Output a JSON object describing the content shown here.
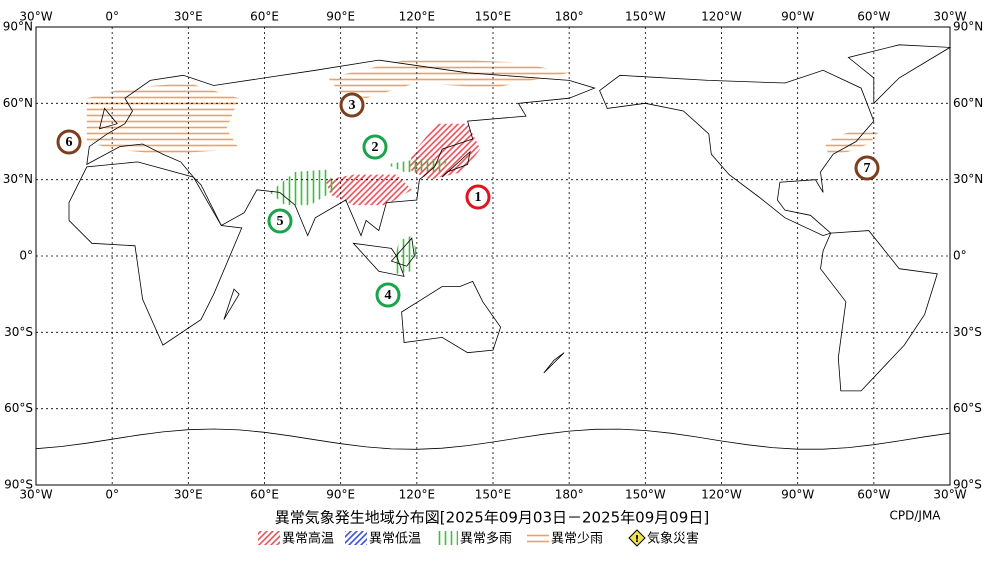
{
  "map": {
    "title": "異常気象発生地域分布図[2025年09月03日－2025年09月09日]",
    "credit": "CPD/JMA",
    "longitude_labels": [
      "30°W",
      "0°",
      "30°E",
      "60°E",
      "90°E",
      "120°E",
      "150°E",
      "180°",
      "150°W",
      "120°W",
      "90°W",
      "60°W",
      "30°W"
    ],
    "latitude_labels": [
      "90°N",
      "60°N",
      "30°N",
      "0°",
      "30°S",
      "60°S",
      "90°S"
    ],
    "markers": [
      {
        "label": "1",
        "color": "#e0141e"
      },
      {
        "label": "2",
        "color": "#1aa34a"
      },
      {
        "label": "3",
        "color": "#7b3f1e"
      },
      {
        "label": "4",
        "color": "#1aa34a"
      },
      {
        "label": "5",
        "color": "#1aa34a"
      },
      {
        "label": "6",
        "color": "#7b3f1e"
      },
      {
        "label": "7",
        "color": "#7b3f1e"
      }
    ],
    "legend": [
      {
        "label": "異常高温",
        "color": "#e8545a"
      },
      {
        "label": "異常低温",
        "color": "#3b55d9"
      },
      {
        "label": "異常多雨",
        "color": "#36c23a"
      },
      {
        "label": "異常少雨",
        "color": "#f0a060"
      },
      {
        "label": "気象災害",
        "color": "#f2e24a"
      }
    ]
  }
}
